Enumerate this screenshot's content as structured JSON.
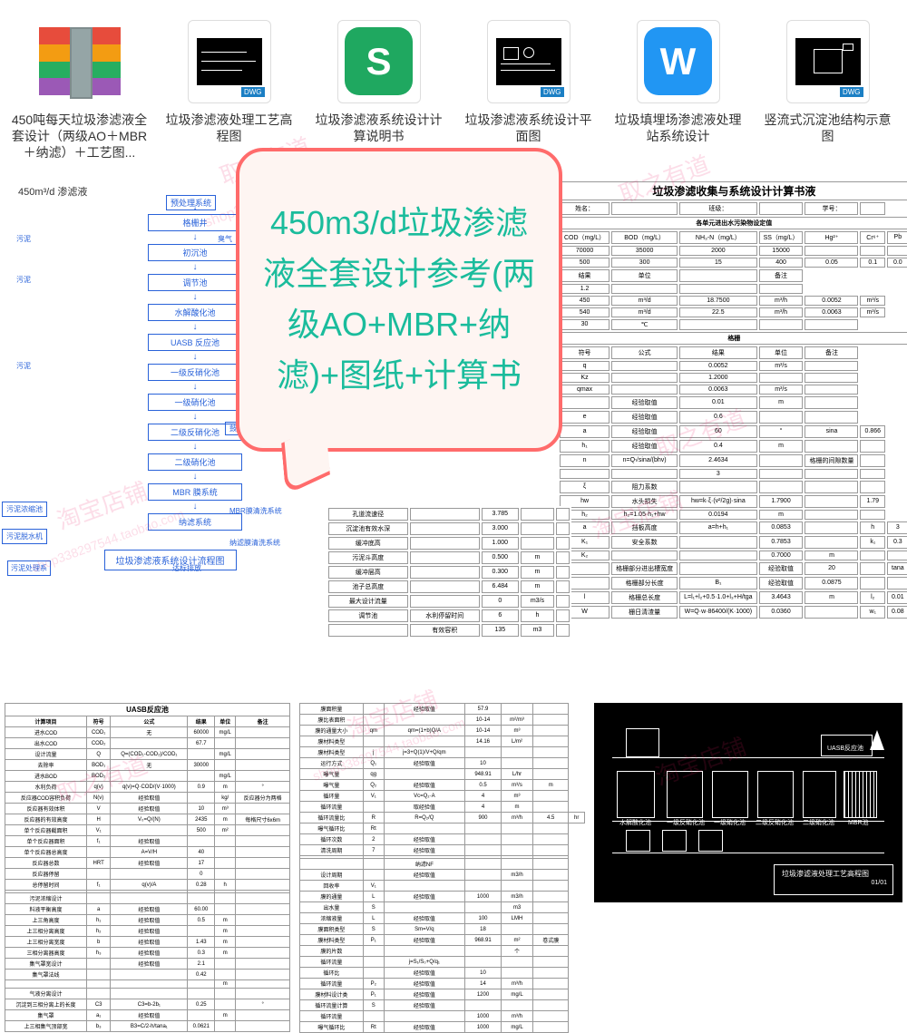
{
  "files": [
    {
      "label": "450吨每天垃圾渗滤液全套设计（两级AO＋MBR＋纳滤）＋工艺图...",
      "type": "archive"
    },
    {
      "label": "垃圾渗滤液处理工艺高程图",
      "type": "dwg"
    },
    {
      "label": "垃圾渗滤液系统设计计算说明书",
      "type": "app-s"
    },
    {
      "label": "垃圾渗滤液系统设计平面图",
      "type": "dwg"
    },
    {
      "label": "垃圾填埋场渗滤液处理站系统设计",
      "type": "app-w"
    },
    {
      "label": "竖流式沉淀池结构示意图",
      "type": "dwg-simple"
    }
  ],
  "speech": "450m3/d垃圾渗滤液全套设计参考(两级AO+MBR+纳滤)+图纸+计算书",
  "flowchart": {
    "input": "450m³/d 渗滤液",
    "preprocess": "预处理系统",
    "boxes": [
      "格栅井",
      "初沉池",
      "调节池",
      "水解酸化池",
      "UASB 反应池",
      "一级反硝化池",
      "一级硝化池",
      "二级反硝化池",
      "二级硝化池",
      "MBR 膜系统",
      "纳滤系统"
    ],
    "sides": {
      "sludge": "污泥",
      "odor": "臭气",
      "odor_collect": "臭气收集箱",
      "blower": "鼓风机",
      "mbr_clean": "MBR膜清洗系统",
      "nf_clean": "纳滤膜清洗系统",
      "discharge": "达标排放",
      "sludge_tank": "污泥浓缩池",
      "dewater": "污泥脱水机",
      "sludge_sys": "污泥处理系"
    },
    "caption": "垃圾渗滤液系统设计流程图"
  },
  "rightTable": {
    "title": "垃圾渗滤收集与系统设计计算书液",
    "header": [
      "姓名：",
      "",
      "班级：",
      "",
      "学号：",
      ""
    ],
    "section1": "各单元进出水污染物设定值",
    "pollHead": [
      "COD（mg/L）",
      "BOD（mg/L）",
      "NH₃-N（mg/L）",
      "SS（mg/L）",
      "Hg²⁺",
      "Cr⁶⁺",
      "Pb"
    ],
    "pollRow1": [
      "70000",
      "35000",
      "2000",
      "15000",
      "",
      "",
      ""
    ],
    "pollRow2": [
      "500",
      "300",
      "15",
      "400",
      "0.05",
      "0.1",
      "0.0"
    ],
    "sec2": [
      "结果",
      "单位",
      "",
      "备注"
    ],
    "r1": [
      "1.2",
      "",
      "",
      ""
    ],
    "r2": [
      "450",
      "m³/d",
      "18.7500",
      "m³/h",
      "0.0052",
      "m³/s"
    ],
    "r3": [
      "540",
      "m³/d",
      "22.5",
      "m³/h",
      "0.0063",
      "m³/s"
    ],
    "r4": [
      "30",
      "℃",
      "",
      "",
      ""
    ],
    "gridTitle": "格栅",
    "gridHead": [
      "符号",
      "公式",
      "结果",
      "单位",
      "备注"
    ],
    "gridRows": [
      [
        "q",
        "",
        "0.0052",
        "m³/s",
        ""
      ],
      [
        "Kz",
        "",
        "1.2000",
        "",
        ""
      ],
      [
        "qmax",
        "",
        "0.0063",
        "m³/s",
        ""
      ],
      [
        "",
        "经验取值",
        "0.01",
        "m",
        ""
      ],
      [
        "e",
        "经验取值",
        "0.6",
        "",
        ""
      ],
      [
        "a",
        "经验取值",
        "60",
        "°",
        "sina",
        "0.866"
      ],
      [
        "h₁",
        "经验取值",
        "0.4",
        "m",
        "",
        ""
      ],
      [
        "n",
        "n=Q√sina/(bhv)",
        "2.4634",
        "",
        "格栅的间隙数量",
        ""
      ],
      [
        "",
        "",
        "3",
        "",
        "",
        ""
      ],
      [
        "ξ",
        "阻力系数",
        "",
        "",
        "",
        ""
      ],
      [
        "hw",
        "水头损失",
        "hw=k·ξ·(v²/2g)·sina",
        "1.7900",
        "",
        "1.79"
      ],
      [
        "h₂",
        "h₂=1.05·h₁+hw",
        "0.0194",
        "m",
        "",
        ""
      ],
      [
        "a",
        "挡板高度",
        "a=h+h₁",
        "0.0853",
        "",
        "h",
        "3"
      ],
      [
        "K₁",
        "安全系数",
        "",
        "0.7853",
        "",
        "k₁",
        "0.3",
        "m"
      ],
      [
        "K₂",
        "",
        "",
        "0.7000",
        "m",
        "",
        ""
      ],
      [
        "",
        "格栅部分进出槽宽度",
        "",
        "经验取值",
        "20",
        "",
        "tana",
        "0.364"
      ],
      [
        "",
        "格栅部分长度",
        "B₁",
        "经验取值",
        "0.0875",
        "",
        "",
        ""
      ],
      [
        "l",
        "格栅总长度",
        "L=l₁+l₂+0.5·1.0+l₃+H/tga",
        "3.4643",
        "m",
        "l₂",
        "0.01",
        "0.0137"
      ],
      [
        "W",
        "栅日清渣量",
        "W=Q·w·86400/(K·1000)",
        "0.0360",
        "",
        "w₁",
        "0.08",
        "m3"
      ]
    ]
  },
  "midTable": {
    "rows": [
      [
        "孔道流速径",
        "",
        "3.785",
        "",
        ""
      ],
      [
        "沉淀池有效水深",
        "",
        "3.000",
        "",
        ""
      ],
      [
        "缓冲底高",
        "",
        "1.000",
        "",
        ""
      ],
      [
        "污泥斗高度",
        "",
        "0.500",
        "m",
        ""
      ],
      [
        "缓冲层高",
        "",
        "0.300",
        "m",
        ""
      ],
      [
        "池子总高度",
        "",
        "6.484",
        "m",
        ""
      ],
      [
        "最大设计流量",
        "",
        "0",
        "m3/s",
        ""
      ],
      [
        "调节池",
        "水利停留时间",
        "6",
        "h",
        ""
      ],
      [
        "",
        "有效容积",
        "135",
        "m3",
        ""
      ]
    ]
  },
  "bottomLeft": {
    "title": "UASB反应池",
    "head": [
      "计算项目",
      "符号",
      "公式",
      "结果",
      "单位",
      "备注"
    ],
    "rows": [
      [
        "进水COD",
        "COD₁",
        "无",
        "60000",
        "mg/L",
        ""
      ],
      [
        "出水COD",
        "COD₂",
        "",
        "67.7",
        "",
        ""
      ],
      [
        "设计流量",
        "Q",
        "Q=(COD₁-COD₂)/COD₁",
        "",
        "mg/L",
        ""
      ],
      [
        "去除率",
        "BOD₁",
        "无",
        "30000",
        "",
        ""
      ],
      [
        "进水BOD",
        "BOD₂",
        "",
        "",
        "mg/L",
        ""
      ],
      [
        "水利负荷",
        "q(v)",
        "q(v)=Q·COD/(V·1000)",
        "0.9",
        "m",
        "°"
      ],
      [
        "反应器COD容积负荷",
        "N(v)",
        "经验取值",
        "",
        "kg/",
        "反应器分为两格"
      ],
      [
        "反应器有效体积",
        "V",
        "经验取值",
        "10",
        "m³",
        ""
      ],
      [
        "反应器的有效高度",
        "H",
        "V₀=Q/(N)",
        "2435",
        "m",
        "每格尺寸6x6m"
      ],
      [
        "单个反应器截面积",
        "V₁",
        "",
        "500",
        "m²",
        ""
      ],
      [
        "单个反应器面积",
        "f₁",
        "经验取值",
        "",
        "",
        ""
      ],
      [
        "单个反应器总高度",
        "",
        "A=V/H",
        "40",
        "",
        ""
      ],
      [
        "反应器总数",
        "HRT",
        "经验取值",
        "17",
        "",
        ""
      ],
      [
        "反应器停留",
        "",
        "",
        "0",
        "",
        ""
      ],
      [
        "总停留时间",
        "f₁",
        "q(v)/A",
        "0.28",
        "h",
        ""
      ],
      [
        "",
        "",
        "",
        "",
        "",
        ""
      ],
      [
        "污泥浓缩设计",
        "",
        "",
        "",
        "",
        ""
      ],
      [
        "料液平衡高度",
        "a",
        "经验取值",
        "60.00",
        "",
        ""
      ],
      [
        "上三角高度",
        "h₁",
        "经验取值",
        "0.5",
        "m",
        ""
      ],
      [
        "上三相分离高度",
        "h₂",
        "经验取值",
        "",
        "m",
        ""
      ],
      [
        "上三相分离宽度",
        "b",
        "经验取值",
        "1.43",
        "m",
        ""
      ],
      [
        "三相分离器高度",
        "h₃",
        "经验取值",
        "0.3",
        "m",
        ""
      ],
      [
        "集气罩宽设计",
        "",
        "经验取值",
        "2.1",
        "",
        ""
      ],
      [
        "集气罩法线",
        "",
        "",
        "0.42",
        "",
        ""
      ],
      [
        "",
        "",
        "",
        "",
        "m",
        ""
      ],
      [
        "气液分离设计",
        "",
        "",
        "",
        "",
        ""
      ],
      [
        "沉淀到三相分离上的长度",
        "C3",
        "C3=b-2b₁",
        "0.25",
        "",
        "°"
      ],
      [
        "集气罩",
        "a₁",
        "经验取值",
        "",
        "m",
        ""
      ],
      [
        "上三相集气顶部宽",
        "b₃",
        "B3=C/2-h/tana₁",
        "0.0621",
        "",
        ""
      ]
    ]
  },
  "bottomMid": {
    "rows": [
      [
        "膜面积量",
        "",
        "经验取值",
        "57.9",
        "",
        ""
      ],
      [
        "膜比表面积",
        "",
        "",
        "10-14",
        "m²/m³",
        ""
      ],
      [
        "膜的通量大小",
        "qm",
        "qm=(1+b)Q/A",
        "10-14",
        "m³",
        ""
      ],
      [
        "膜材料类型",
        "",
        "",
        "14.16",
        "L/m²",
        ""
      ],
      [
        "膜材料类型",
        "j",
        "j=3+Q(1)/V+Q/qm",
        "",
        "",
        ""
      ],
      [
        "运行方式",
        "Q₁",
        "经验取值",
        "10",
        "",
        ""
      ],
      [
        "曝气量",
        "qg",
        "",
        "948.91",
        "L/hr",
        ""
      ],
      [
        "曝气量",
        "Q₂",
        "经验取值",
        "0.5",
        "m³/s",
        "m"
      ],
      [
        "循环量",
        "V₁",
        "Vc=Q₂·A",
        "4",
        "m³",
        ""
      ],
      [
        "循环流量",
        "",
        "取经验值",
        "4",
        "m",
        ""
      ],
      [
        "循环流量比",
        "R",
        "R=Q₂/Q",
        "900",
        "m³/h",
        "4.5",
        "hr"
      ],
      [
        "曝气循环比",
        "Rt",
        "",
        "",
        "",
        ""
      ],
      [
        "循环次数",
        "2",
        "经验取值",
        "",
        "",
        ""
      ],
      [
        "清洗周期",
        "7",
        "经验取值",
        "",
        "",
        ""
      ],
      [
        "",
        "",
        "",
        "",
        "",
        ""
      ],
      [
        "",
        "",
        "纳滤NF",
        "",
        "",
        ""
      ],
      [
        "设计周期",
        "",
        "经验取值",
        "",
        "m3/h",
        ""
      ],
      [
        "回收率",
        "V₁",
        "",
        "",
        "",
        ""
      ],
      [
        "膜的通量",
        "L",
        "经验取值",
        "1000",
        "m3/h",
        ""
      ],
      [
        "出水量",
        "S",
        "",
        "",
        "m3",
        ""
      ],
      [
        "浓缩液量",
        "L",
        "经验取值",
        "100",
        "LMH",
        ""
      ],
      [
        "膜面积类型",
        "S",
        "Sm=V/q",
        "18",
        "",
        ""
      ],
      [
        "膜材料类型",
        "P₁",
        "经验取值",
        "968.91",
        "m²",
        "卷式膜"
      ],
      [
        "膜的片数",
        "",
        "",
        "",
        "个",
        ""
      ],
      [
        "循环流量",
        "",
        "j=S₁/S₀+Q/q₁",
        "",
        "",
        ""
      ],
      [
        "循环比",
        "",
        "经验取值",
        "10",
        "",
        ""
      ],
      [
        "循环流量",
        "P₂",
        "经验取值",
        "14",
        "m³/h",
        ""
      ],
      [
        "膜材料设计类",
        "P₁",
        "经验取值",
        "1200",
        "mg/L",
        ""
      ],
      [
        "循环流量计算",
        "S",
        "经验取值",
        "",
        "",
        ""
      ],
      [
        "循环流量",
        "",
        "",
        "1000",
        "m³/h",
        ""
      ],
      [
        "曝气循环比",
        "Rt",
        "经验取值",
        "1000",
        "mg/L",
        ""
      ]
    ]
  },
  "cad": {
    "labels": [
      "UASB反应池",
      "水解酸化池",
      "一级反硝化池",
      "一级硝化池",
      "二级反硝化池",
      "二级硝化池",
      "MBR池",
      "垃圾渗滤液处理工艺高程图",
      "01/01"
    ]
  },
  "watermarks": [
    "取之有道",
    "淘宝店铺",
    "shop338297544.taobao.com"
  ],
  "colors": {
    "speech_border": "#ff6b6b",
    "speech_bg": "#fef5f2",
    "speech_text": "#1abc9c",
    "flow": "#2962d9"
  }
}
